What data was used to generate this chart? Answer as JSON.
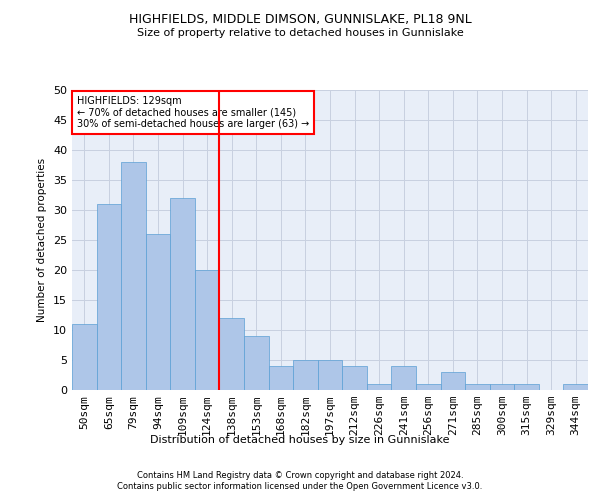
{
  "title": "HIGHFIELDS, MIDDLE DIMSON, GUNNISLAKE, PL18 9NL",
  "subtitle": "Size of property relative to detached houses in Gunnislake",
  "xlabel": "Distribution of detached houses by size in Gunnislake",
  "ylabel": "Number of detached properties",
  "categories": [
    "50sqm",
    "65sqm",
    "79sqm",
    "94sqm",
    "109sqm",
    "124sqm",
    "138sqm",
    "153sqm",
    "168sqm",
    "182sqm",
    "197sqm",
    "212sqm",
    "226sqm",
    "241sqm",
    "256sqm",
    "271sqm",
    "285sqm",
    "300sqm",
    "315sqm",
    "329sqm",
    "344sqm"
  ],
  "values": [
    11,
    31,
    38,
    26,
    32,
    20,
    12,
    9,
    4,
    5,
    5,
    4,
    1,
    4,
    1,
    3,
    1,
    1,
    1,
    0,
    1
  ],
  "bar_color": "#aec6e8",
  "bar_edge_color": "#5a9fd4",
  "bar_width": 1.0,
  "highlight_line_color": "red",
  "annotation_text": "HIGHFIELDS: 129sqm\n← 70% of detached houses are smaller (145)\n30% of semi-detached houses are larger (63) →",
  "annotation_box_edge_color": "red",
  "ylim": [
    0,
    50
  ],
  "yticks": [
    0,
    5,
    10,
    15,
    20,
    25,
    30,
    35,
    40,
    45,
    50
  ],
  "grid_color": "#c8d0e0",
  "bg_color": "#e8eef8",
  "footer_line1": "Contains HM Land Registry data © Crown copyright and database right 2024.",
  "footer_line2": "Contains public sector information licensed under the Open Government Licence v3.0."
}
